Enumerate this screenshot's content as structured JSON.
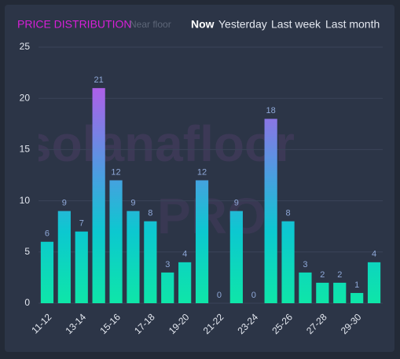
{
  "chart_data": {
    "type": "bar",
    "title": "PRICE DISTRIBUTION",
    "subtitle": "Near floor",
    "tabs": [
      "Now",
      "Yesterday",
      "Last week",
      "Last month"
    ],
    "watermark": [
      "solanafloor",
      "PRO"
    ],
    "categories": [
      "11-12",
      null,
      "13-14",
      null,
      "15-16",
      null,
      "17-18",
      null,
      "19-20",
      null,
      "21-22",
      null,
      "23-24",
      null,
      "25-26",
      null,
      "27-28",
      null,
      "29-30",
      null
    ],
    "values": [
      6,
      9,
      7,
      21,
      12,
      9,
      8,
      3,
      4,
      12,
      0,
      9,
      0,
      18,
      8,
      3,
      2,
      2,
      1,
      4
    ],
    "colors": [
      "#0ee6a8",
      "#0cc8d0",
      "#4a9ee0",
      "#b05ee8"
    ],
    "ylim": [
      0,
      25
    ],
    "yticks": [
      0,
      5,
      10,
      15,
      20,
      25
    ],
    "grid": true
  }
}
